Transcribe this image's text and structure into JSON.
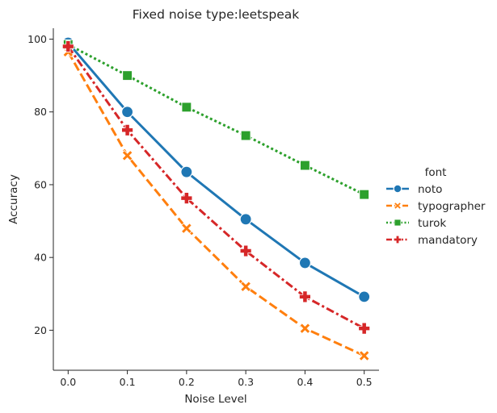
{
  "chart_data": {
    "type": "line",
    "title": "Fixed noise type:leetspeak",
    "xlabel": "Noise Level",
    "ylabel": "Accuracy",
    "x": [
      0.0,
      0.1,
      0.2,
      0.3,
      0.4,
      0.5
    ],
    "x_ticks": [
      "0.0",
      "0.1",
      "0.2",
      "0.3",
      "0.4",
      "0.5"
    ],
    "y_ticks": [
      "20",
      "40",
      "60",
      "80",
      "100"
    ],
    "xlim": [
      -0.025,
      0.525
    ],
    "ylim": [
      9,
      103
    ],
    "grid": false,
    "legend_title": "font",
    "legend_position": "right",
    "series": [
      {
        "name": "noto",
        "values": [
          99,
          80,
          63.5,
          50.5,
          38.5,
          29.2
        ],
        "color": "#1f77b4",
        "dash": "solid",
        "marker": "circle"
      },
      {
        "name": "typographer",
        "values": [
          96.5,
          68,
          48,
          32,
          20.5,
          13
        ],
        "color": "#ff7f0e",
        "dash": "dashed",
        "marker": "x"
      },
      {
        "name": "turok",
        "values": [
          98.5,
          90,
          81.3,
          73.5,
          65.3,
          57.3
        ],
        "color": "#2ca02c",
        "dash": "dotted",
        "marker": "square"
      },
      {
        "name": "mandatory",
        "values": [
          98,
          75,
          56.3,
          41.8,
          29.2,
          20.5
        ],
        "color": "#d62728",
        "dash": "dashdot",
        "marker": "plus"
      }
    ]
  }
}
